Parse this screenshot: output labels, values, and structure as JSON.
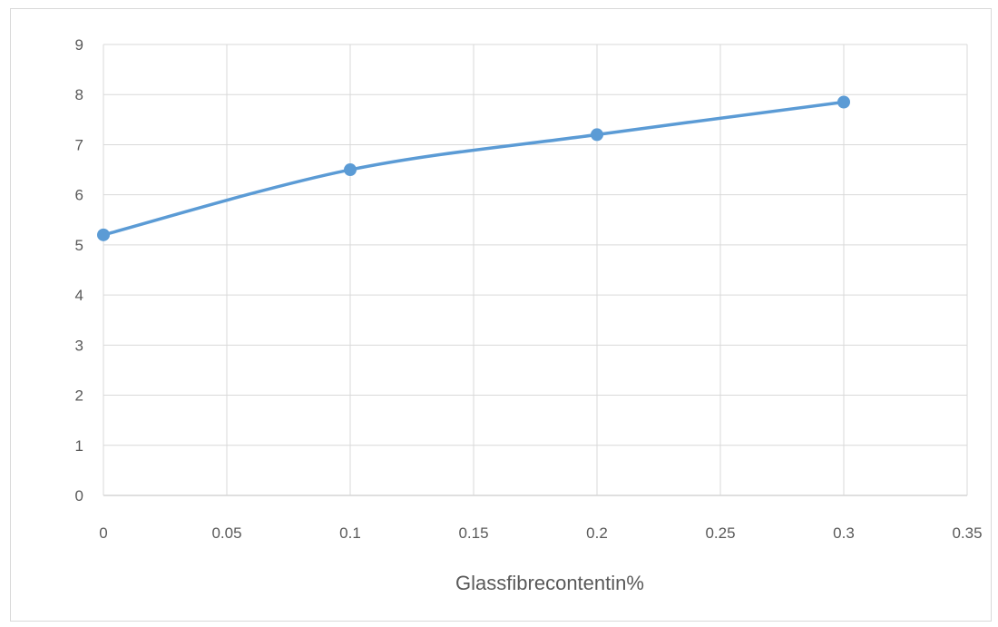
{
  "chart_data": {
    "type": "scatter",
    "title": "",
    "xlabel": "Glassfibrecontentin%",
    "ylabel": "",
    "xlim": [
      0,
      0.35
    ],
    "ylim": [
      0,
      9
    ],
    "x_ticks": [
      "0",
      "0.05",
      "0.1",
      "0.15",
      "0.2",
      "0.25",
      "0.3",
      "0.35"
    ],
    "y_ticks": [
      "0",
      "1",
      "2",
      "3",
      "4",
      "5",
      "6",
      "7",
      "8",
      "9"
    ],
    "grid": true,
    "legend": "none",
    "line_style": "smooth",
    "series": [
      {
        "color": "#5b9bd5",
        "points": [
          {
            "x": 0,
            "y": 5.2
          },
          {
            "x": 0.1,
            "y": 6.5
          },
          {
            "x": 0.2,
            "y": 7.2
          },
          {
            "x": 0.3,
            "y": 7.85
          }
        ]
      }
    ]
  }
}
